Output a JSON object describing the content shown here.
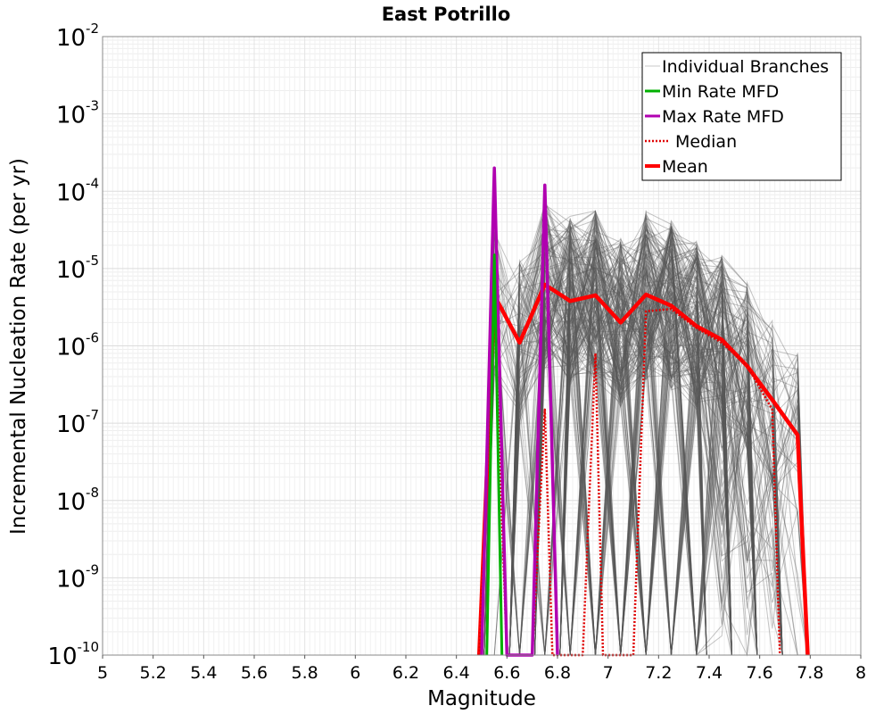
{
  "chart_data": {
    "type": "line",
    "title": "East Potrillo",
    "xlabel": "Magnitude",
    "ylabel": "Incremental Nucleation Rate (per yr)",
    "xlim": [
      5,
      8
    ],
    "ylim": [
      1e-10,
      0.01
    ],
    "yscale": "log",
    "grid": true,
    "legend_position": "top-right",
    "x_ticks": [
      "5",
      "5.2",
      "5.4",
      "5.6",
      "5.8",
      "6",
      "6.2",
      "6.4",
      "6.6",
      "6.8",
      "7",
      "7.2",
      "7.4",
      "7.6",
      "7.8",
      "8"
    ],
    "y_ticks": [
      {
        "base": "10",
        "exp": "-10"
      },
      {
        "base": "10",
        "exp": "-9"
      },
      {
        "base": "10",
        "exp": "-8"
      },
      {
        "base": "10",
        "exp": "-7"
      },
      {
        "base": "10",
        "exp": "-6"
      },
      {
        "base": "10",
        "exp": "-5"
      },
      {
        "base": "10",
        "exp": "-4"
      },
      {
        "base": "10",
        "exp": "-3"
      },
      {
        "base": "10",
        "exp": "-2"
      }
    ],
    "legend": [
      {
        "label": "Individual Branches",
        "color": "#c8c8c8",
        "style": "solid-thin"
      },
      {
        "label": "Min Rate MFD",
        "color": "#00b000",
        "style": "solid"
      },
      {
        "label": "Max Rate MFD",
        "color": "#b000b0",
        "style": "solid"
      },
      {
        "label": "Median",
        "color": "#e00000",
        "style": "dotted"
      },
      {
        "label": "Mean",
        "color": "#ff0000",
        "style": "solid-thick"
      }
    ],
    "series": [
      {
        "name": "Mean",
        "color": "#ff0000",
        "x": [
          6.49,
          6.55,
          6.65,
          6.75,
          6.85,
          6.95,
          7.05,
          7.15,
          7.25,
          7.35,
          7.45,
          7.55,
          7.65,
          7.75,
          7.79
        ],
        "y": [
          1e-10,
          4.5e-06,
          1.1e-06,
          6.2e-06,
          3.8e-06,
          4.5e-06,
          2e-06,
          4.6e-06,
          3.3e-06,
          1.8e-06,
          1.2e-06,
          5.5e-07,
          2e-07,
          7e-08,
          1e-10
        ]
      },
      {
        "name": "Median",
        "color": "#e00000",
        "x": [
          6.49,
          6.55,
          6.6,
          6.7,
          6.75,
          6.78,
          6.9,
          6.95,
          6.98,
          7.1,
          7.15,
          7.25,
          7.35,
          7.45,
          7.55,
          7.65,
          7.68
        ],
        "y": [
          1e-10,
          3e-06,
          1e-10,
          1e-10,
          1.5e-07,
          1e-10,
          1e-10,
          8e-07,
          1e-10,
          1e-10,
          2.8e-06,
          3e-06,
          1.7e-06,
          1.1e-06,
          5.5e-07,
          1.5e-07,
          1e-10
        ]
      },
      {
        "name": "Max Rate MFD",
        "color": "#b000b0",
        "x": [
          6.5,
          6.55,
          6.6,
          6.7,
          6.75,
          6.8
        ],
        "y": [
          1e-10,
          0.0002,
          1e-10,
          1e-10,
          0.00012,
          1e-10
        ]
      },
      {
        "name": "Min Rate MFD",
        "color": "#00b000",
        "x": [
          6.52,
          6.55,
          6.58
        ],
        "y": [
          1e-10,
          1.5e-05,
          1e-10
        ]
      }
    ]
  }
}
